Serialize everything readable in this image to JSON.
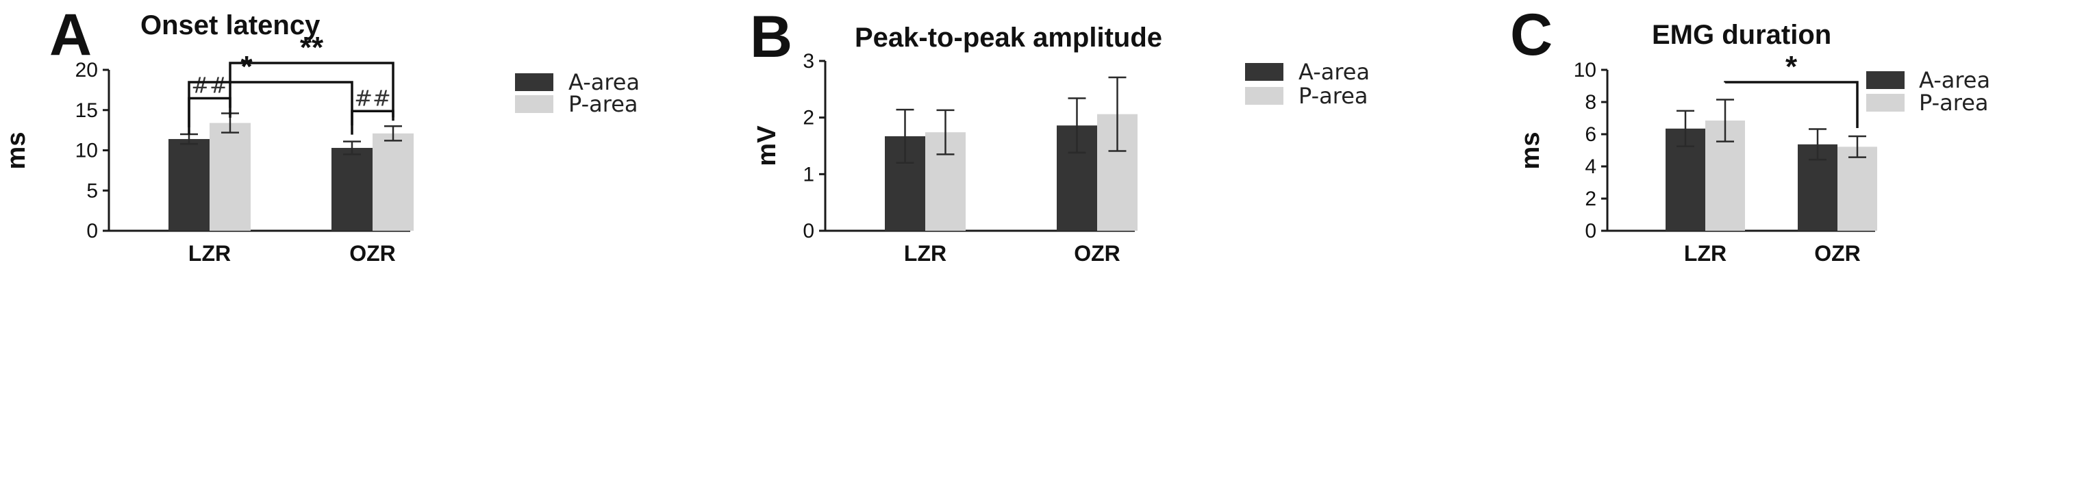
{
  "colors": {
    "a_area": "#353535",
    "p_area": "#d4d4d4",
    "axis": "#1a1a1a"
  },
  "chart_data": [
    {
      "type": "bar",
      "panel": "A",
      "title": "Onset latency",
      "xlabel": "",
      "ylabel": "ms",
      "ylim": [
        0,
        20
      ],
      "yticks": [
        0,
        5,
        10,
        15,
        20
      ],
      "categories": [
        "LZR",
        "OZR"
      ],
      "series": [
        {
          "name": "A-area",
          "values": [
            11.4,
            10.3
          ],
          "errors": [
            0.6,
            0.8
          ]
        },
        {
          "name": "P-area",
          "values": [
            13.4,
            12.1
          ],
          "errors": [
            1.2,
            0.9
          ]
        }
      ],
      "legend": "right",
      "annotations": [
        {
          "label": "##",
          "kind": "within",
          "category": 0
        },
        {
          "label": "##",
          "kind": "within",
          "category": 1
        },
        {
          "label": "*",
          "kind": "between",
          "from": [
            0,
            0
          ],
          "to": [
            1,
            0
          ]
        },
        {
          "label": "**",
          "kind": "between",
          "from": [
            0,
            1
          ],
          "to": [
            1,
            1
          ]
        }
      ]
    },
    {
      "type": "bar",
      "panel": "B",
      "title": "Peak-to-peak amplitude",
      "xlabel": "",
      "ylabel": "mV",
      "ylim": [
        0,
        3
      ],
      "yticks": [
        0,
        1,
        2,
        3
      ],
      "categories": [
        "LZR",
        "OZR"
      ],
      "series": [
        {
          "name": "A-area",
          "values": [
            1.67,
            1.86
          ],
          "errors": [
            0.47,
            0.48
          ]
        },
        {
          "name": "P-area",
          "values": [
            1.74,
            2.06
          ],
          "errors": [
            0.39,
            0.65
          ]
        }
      ],
      "legend": "right",
      "annotations": []
    },
    {
      "type": "bar",
      "panel": "C",
      "title": "EMG duration",
      "xlabel": "",
      "ylabel": "ms",
      "ylim": [
        0,
        10
      ],
      "yticks": [
        0,
        2,
        4,
        6,
        8,
        10
      ],
      "categories": [
        "LZR",
        "OZR"
      ],
      "series": [
        {
          "name": "A-area",
          "values": [
            6.35,
            5.37
          ],
          "errors": [
            1.1,
            0.95
          ]
        },
        {
          "name": "P-area",
          "values": [
            6.85,
            5.22
          ],
          "errors": [
            1.3,
            0.65
          ]
        }
      ],
      "legend": "right",
      "annotations": [
        {
          "label": "*",
          "kind": "between",
          "from": [
            0,
            1
          ],
          "to": [
            1,
            1
          ]
        }
      ]
    }
  ]
}
